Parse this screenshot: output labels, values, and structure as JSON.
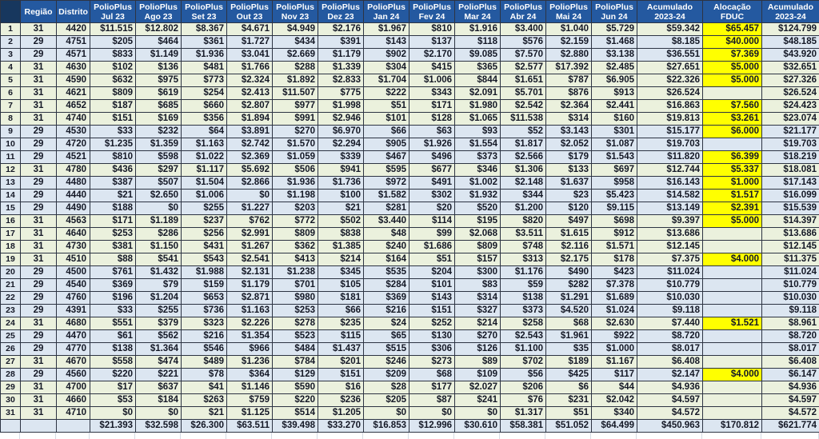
{
  "title": "PolioPlus contributions by district 2023-24",
  "colors": {
    "header_blue": "#2459a0",
    "corner_navy": "#17375e",
    "row_region_31_green": "#ebf1dd",
    "row_region_29_blue": "#dce6f1",
    "allocation_yellow": "#ffff00",
    "grid_dark": "#2d3443",
    "text_dark": "#141826",
    "totals_blue": "#dce6f1"
  },
  "columns": {
    "regiao": "Região",
    "distrito": "Distrito",
    "months": [
      {
        "l1": "PolioPlus",
        "l2": "Jul 23"
      },
      {
        "l1": "PolioPlus",
        "l2": "Ago 23"
      },
      {
        "l1": "PolioPlus",
        "l2": "Set 23"
      },
      {
        "l1": "PolioPlus",
        "l2": "Out 23"
      },
      {
        "l1": "PolioPlus",
        "l2": "Nov 23"
      },
      {
        "l1": "PolioPlus",
        "l2": "Dez 23"
      },
      {
        "l1": "PolioPlus",
        "l2": "Jan 24"
      },
      {
        "l1": "PolioPlus",
        "l2": "Fev 24"
      },
      {
        "l1": "PolioPlus",
        "l2": "Mar 24"
      },
      {
        "l1": "PolioPlus",
        "l2": "Abr 24"
      },
      {
        "l1": "PolioPlus",
        "l2": "Mai 24"
      },
      {
        "l1": "PolioPlus",
        "l2": "Jun 24"
      }
    ],
    "acumulado": {
      "l1": "Acumulado",
      "l2": "2023-24"
    },
    "alocacao": {
      "l1": "Alocação",
      "l2": "FDUC"
    },
    "acumulado2": {
      "l1": "Acumulado",
      "l2": "2023-24"
    }
  },
  "rows": [
    {
      "n": "1",
      "regiao": "31",
      "distrito": "4420",
      "months": [
        "$11.515",
        "$12.802",
        "$8.367",
        "$4.671",
        "$4.949",
        "$2.176",
        "$1.967",
        "$810",
        "$1.916",
        "$3.400",
        "$1.040",
        "$5.729"
      ],
      "acumulado": "$59.342",
      "alocacao": "$65.457",
      "acumulado2": "$124.799"
    },
    {
      "n": "2",
      "regiao": "29",
      "distrito": "4751",
      "months": [
        "$205",
        "$464",
        "$361",
        "$1.727",
        "$434",
        "$391",
        "$143",
        "$137",
        "$118",
        "$576",
        "$2.159",
        "$1.468"
      ],
      "acumulado": "$8.185",
      "alocacao": "$40.000",
      "acumulado2": "$48.185"
    },
    {
      "n": "3",
      "regiao": "29",
      "distrito": "4571",
      "months": [
        "$833",
        "$1.149",
        "$1.936",
        "$3.041",
        "$2.669",
        "$1.179",
        "$902",
        "$2.170",
        "$9.085",
        "$7.570",
        "$2.880",
        "$3.138"
      ],
      "acumulado": "$36.551",
      "alocacao": "$7.369",
      "acumulado2": "$43.920"
    },
    {
      "n": "4",
      "regiao": "31",
      "distrito": "4630",
      "months": [
        "$102",
        "$136",
        "$481",
        "$1.766",
        "$288",
        "$1.339",
        "$304",
        "$415",
        "$365",
        "$2.577",
        "$17.392",
        "$2.485"
      ],
      "acumulado": "$27.651",
      "alocacao": "$5.000",
      "acumulado2": "$32.651"
    },
    {
      "n": "5",
      "regiao": "31",
      "distrito": "4590",
      "months": [
        "$632",
        "$975",
        "$773",
        "$2.324",
        "$1.892",
        "$2.833",
        "$1.704",
        "$1.006",
        "$844",
        "$1.651",
        "$787",
        "$6.905"
      ],
      "acumulado": "$22.326",
      "alocacao": "$5.000",
      "acumulado2": "$27.326"
    },
    {
      "n": "6",
      "regiao": "31",
      "distrito": "4621",
      "months": [
        "$809",
        "$619",
        "$254",
        "$2.413",
        "$11.507",
        "$775",
        "$222",
        "$343",
        "$2.091",
        "$5.701",
        "$876",
        "$913"
      ],
      "acumulado": "$26.524",
      "alocacao": "",
      "acumulado2": "$26.524"
    },
    {
      "n": "7",
      "regiao": "31",
      "distrito": "4652",
      "months": [
        "$187",
        "$685",
        "$660",
        "$2.807",
        "$977",
        "$1.998",
        "$51",
        "$171",
        "$1.980",
        "$2.542",
        "$2.364",
        "$2.441"
      ],
      "acumulado": "$16.863",
      "alocacao": "$7.560",
      "acumulado2": "$24.423"
    },
    {
      "n": "8",
      "regiao": "31",
      "distrito": "4740",
      "months": [
        "$151",
        "$169",
        "$356",
        "$1.894",
        "$991",
        "$2.946",
        "$101",
        "$128",
        "$1.065",
        "$11.538",
        "$314",
        "$160"
      ],
      "acumulado": "$19.813",
      "alocacao": "$3.261",
      "acumulado2": "$23.074"
    },
    {
      "n": "9",
      "regiao": "29",
      "distrito": "4530",
      "months": [
        "$33",
        "$232",
        "$64",
        "$3.891",
        "$270",
        "$6.970",
        "$66",
        "$63",
        "$93",
        "$52",
        "$3.143",
        "$301"
      ],
      "acumulado": "$15.177",
      "alocacao": "$6.000",
      "acumulado2": "$21.177"
    },
    {
      "n": "10",
      "regiao": "29",
      "distrito": "4720",
      "months": [
        "$1.235",
        "$1.359",
        "$1.163",
        "$2.742",
        "$1.570",
        "$2.294",
        "$905",
        "$1.926",
        "$1.554",
        "$1.817",
        "$2.052",
        "$1.087"
      ],
      "acumulado": "$19.703",
      "alocacao": "",
      "acumulado2": "$19.703"
    },
    {
      "n": "11",
      "regiao": "29",
      "distrito": "4521",
      "months": [
        "$810",
        "$598",
        "$1.022",
        "$2.369",
        "$1.059",
        "$339",
        "$467",
        "$496",
        "$373",
        "$2.566",
        "$179",
        "$1.543"
      ],
      "acumulado": "$11.820",
      "alocacao": "$6.399",
      "acumulado2": "$18.219"
    },
    {
      "n": "12",
      "regiao": "31",
      "distrito": "4780",
      "months": [
        "$436",
        "$297",
        "$1.117",
        "$5.692",
        "$506",
        "$941",
        "$595",
        "$677",
        "$346",
        "$1.306",
        "$133",
        "$697"
      ],
      "acumulado": "$12.744",
      "alocacao": "$5.337",
      "acumulado2": "$18.081"
    },
    {
      "n": "13",
      "regiao": "29",
      "distrito": "4480",
      "months": [
        "$387",
        "$507",
        "$1.504",
        "$2.866",
        "$1.936",
        "$1.736",
        "$972",
        "$491",
        "$1.002",
        "$2.148",
        "$1.637",
        "$958"
      ],
      "acumulado": "$16.143",
      "alocacao": "$1.000",
      "acumulado2": "$17.143"
    },
    {
      "n": "14",
      "regiao": "29",
      "distrito": "4440",
      "months": [
        "$21",
        "$2.650",
        "$1.006",
        "$0",
        "$1.198",
        "$100",
        "$1.582",
        "$302",
        "$1.932",
        "$344",
        "$23",
        "$5.423"
      ],
      "acumulado": "$14.582",
      "alocacao": "$1.517",
      "acumulado2": "$16.099"
    },
    {
      "n": "15",
      "regiao": "29",
      "distrito": "4490",
      "months": [
        "$188",
        "$0",
        "$255",
        "$1.227",
        "$203",
        "$21",
        "$281",
        "$20",
        "$520",
        "$1.200",
        "$120",
        "$9.115"
      ],
      "acumulado": "$13.149",
      "alocacao": "$2.391",
      "acumulado2": "$15.539"
    },
    {
      "n": "16",
      "regiao": "31",
      "distrito": "4563",
      "months": [
        "$171",
        "$1.189",
        "$237",
        "$762",
        "$772",
        "$502",
        "$3.440",
        "$114",
        "$195",
        "$820",
        "$497",
        "$698"
      ],
      "acumulado": "$9.397",
      "alocacao": "$5.000",
      "acumulado2": "$14.397"
    },
    {
      "n": "17",
      "regiao": "31",
      "distrito": "4640",
      "months": [
        "$253",
        "$286",
        "$256",
        "$2.991",
        "$809",
        "$838",
        "$48",
        "$99",
        "$2.068",
        "$3.511",
        "$1.615",
        "$912"
      ],
      "acumulado": "$13.686",
      "alocacao": "",
      "acumulado2": "$13.686"
    },
    {
      "n": "18",
      "regiao": "31",
      "distrito": "4730",
      "months": [
        "$381",
        "$1.150",
        "$431",
        "$1.267",
        "$362",
        "$1.385",
        "$240",
        "$1.686",
        "$809",
        "$748",
        "$2.116",
        "$1.571"
      ],
      "acumulado": "$12.145",
      "alocacao": "",
      "acumulado2": "$12.145"
    },
    {
      "n": "19",
      "regiao": "31",
      "distrito": "4510",
      "months": [
        "$88",
        "$541",
        "$543",
        "$2.541",
        "$413",
        "$214",
        "$164",
        "$51",
        "$157",
        "$313",
        "$2.175",
        "$178"
      ],
      "acumulado": "$7.375",
      "alocacao": "$4.000",
      "acumulado2": "$11.375"
    },
    {
      "n": "20",
      "regiao": "29",
      "distrito": "4500",
      "months": [
        "$761",
        "$1.432",
        "$1.988",
        "$2.131",
        "$1.238",
        "$345",
        "$535",
        "$204",
        "$300",
        "$1.176",
        "$490",
        "$423"
      ],
      "acumulado": "$11.024",
      "alocacao": "",
      "acumulado2": "$11.024"
    },
    {
      "n": "21",
      "regiao": "29",
      "distrito": "4540",
      "months": [
        "$369",
        "$79",
        "$159",
        "$1.179",
        "$701",
        "$105",
        "$284",
        "$101",
        "$83",
        "$59",
        "$282",
        "$7.378"
      ],
      "acumulado": "$10.779",
      "alocacao": "",
      "acumulado2": "$10.779"
    },
    {
      "n": "22",
      "regiao": "29",
      "distrito": "4760",
      "months": [
        "$196",
        "$1.204",
        "$653",
        "$2.871",
        "$980",
        "$181",
        "$369",
        "$143",
        "$314",
        "$138",
        "$1.291",
        "$1.689"
      ],
      "acumulado": "$10.030",
      "alocacao": "",
      "acumulado2": "$10.030"
    },
    {
      "n": "23",
      "regiao": "29",
      "distrito": "4391",
      "months": [
        "$33",
        "$255",
        "$736",
        "$1.163",
        "$253",
        "$66",
        "$216",
        "$151",
        "$327",
        "$373",
        "$4.520",
        "$1.024"
      ],
      "acumulado": "$9.118",
      "alocacao": "",
      "acumulado2": "$9.118"
    },
    {
      "n": "24",
      "regiao": "31",
      "distrito": "4680",
      "months": [
        "$551",
        "$379",
        "$323",
        "$2.226",
        "$278",
        "$235",
        "$24",
        "$252",
        "$214",
        "$258",
        "$68",
        "$2.630"
      ],
      "acumulado": "$7.440",
      "alocacao": "$1.521",
      "acumulado2": "$8.961"
    },
    {
      "n": "25",
      "regiao": "29",
      "distrito": "4470",
      "months": [
        "$61",
        "$562",
        "$216",
        "$1.354",
        "$523",
        "$115",
        "$65",
        "$130",
        "$270",
        "$2.543",
        "$1.961",
        "$922"
      ],
      "acumulado": "$8.720",
      "alocacao": "",
      "acumulado2": "$8.720"
    },
    {
      "n": "26",
      "regiao": "29",
      "distrito": "4770",
      "months": [
        "$138",
        "$1.364",
        "$546",
        "$966",
        "$484",
        "$1.437",
        "$515",
        "$306",
        "$126",
        "$1.100",
        "$35",
        "$1.000"
      ],
      "acumulado": "$8.017",
      "alocacao": "",
      "acumulado2": "$8.017"
    },
    {
      "n": "27",
      "regiao": "31",
      "distrito": "4670",
      "months": [
        "$558",
        "$474",
        "$489",
        "$1.236",
        "$784",
        "$201",
        "$246",
        "$273",
        "$89",
        "$702",
        "$189",
        "$1.167"
      ],
      "acumulado": "$6.408",
      "alocacao": "",
      "acumulado2": "$6.408"
    },
    {
      "n": "28",
      "regiao": "29",
      "distrito": "4560",
      "months": [
        "$220",
        "$221",
        "$78",
        "$364",
        "$129",
        "$151",
        "$209",
        "$68",
        "$109",
        "$56",
        "$425",
        "$117"
      ],
      "acumulado": "$2.147",
      "alocacao": "$4.000",
      "acumulado2": "$6.147"
    },
    {
      "n": "29",
      "regiao": "31",
      "distrito": "4700",
      "months": [
        "$17",
        "$637",
        "$41",
        "$1.146",
        "$590",
        "$16",
        "$28",
        "$177",
        "$2.027",
        "$206",
        "$6",
        "$44"
      ],
      "acumulado": "$4.936",
      "alocacao": "",
      "acumulado2": "$4.936"
    },
    {
      "n": "30",
      "regiao": "31",
      "distrito": "4660",
      "months": [
        "$53",
        "$184",
        "$263",
        "$759",
        "$220",
        "$236",
        "$205",
        "$87",
        "$241",
        "$76",
        "$231",
        "$2.042"
      ],
      "acumulado": "$4.597",
      "alocacao": "",
      "acumulado2": "$4.597"
    },
    {
      "n": "31",
      "regiao": "31",
      "distrito": "4710",
      "months": [
        "$0",
        "$0",
        "$21",
        "$1.125",
        "$514",
        "$1.205",
        "$0",
        "$0",
        "$0",
        "$1.317",
        "$51",
        "$340"
      ],
      "acumulado": "$4.572",
      "alocacao": "",
      "acumulado2": "$4.572"
    }
  ],
  "totals": {
    "months": [
      "$21.393",
      "$32.598",
      "$26.300",
      "$63.511",
      "$39.498",
      "$33.270",
      "$16.853",
      "$12.996",
      "$30.610",
      "$58.381",
      "$51.052",
      "$64.499"
    ],
    "acumulado": "$450.963",
    "alocacao": "$170.812",
    "acumulado2": "$621.774"
  }
}
